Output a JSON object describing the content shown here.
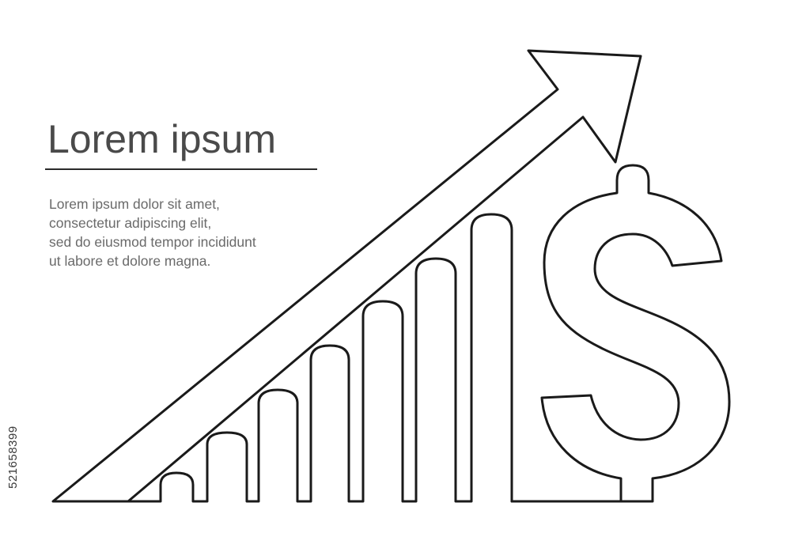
{
  "heading": {
    "title": "Lorem ipsum"
  },
  "paragraph": {
    "lines": [
      "Lorem ipsum dolor sit amet,",
      "consectetur adipiscing elit,",
      "sed do eiusmod tempor incididunt",
      "ut labore et dolore magna."
    ]
  },
  "sidebar": {
    "stock_id": "521658399"
  },
  "illustration": {
    "stroke_color": "#1a1a1a",
    "text_color": "#4a4a4a",
    "icons": [
      "growth-arrow-icon",
      "bar-chart-icon",
      "dollar-sign-icon"
    ]
  }
}
